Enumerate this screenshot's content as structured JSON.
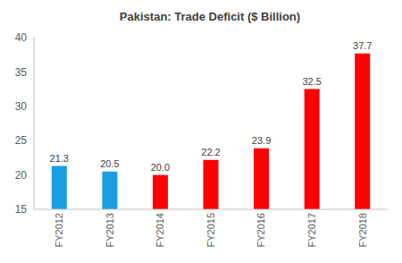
{
  "chart_data": {
    "type": "bar",
    "title": "Pakistan: Trade Deficit ($ Billion)",
    "categories": [
      "FY2012",
      "FY2013",
      "FY2014",
      "FY2015",
      "FY2016",
      "FY2017",
      "FY2018"
    ],
    "values": [
      21.3,
      20.5,
      20.0,
      22.2,
      23.9,
      32.5,
      37.7
    ],
    "value_labels": [
      "21.3",
      "20.5",
      "20.0",
      "22.2",
      "23.9",
      "32.5",
      "37.7"
    ],
    "colors": [
      "#1B9DE2",
      "#1B9DE2",
      "#FF0000",
      "#FF0000",
      "#FF0000",
      "#FF0000",
      "#FF0000"
    ],
    "ylim": [
      15,
      40
    ],
    "yticks": [
      15,
      20,
      25,
      30,
      35,
      40
    ],
    "grid": false,
    "data_labels": true
  }
}
